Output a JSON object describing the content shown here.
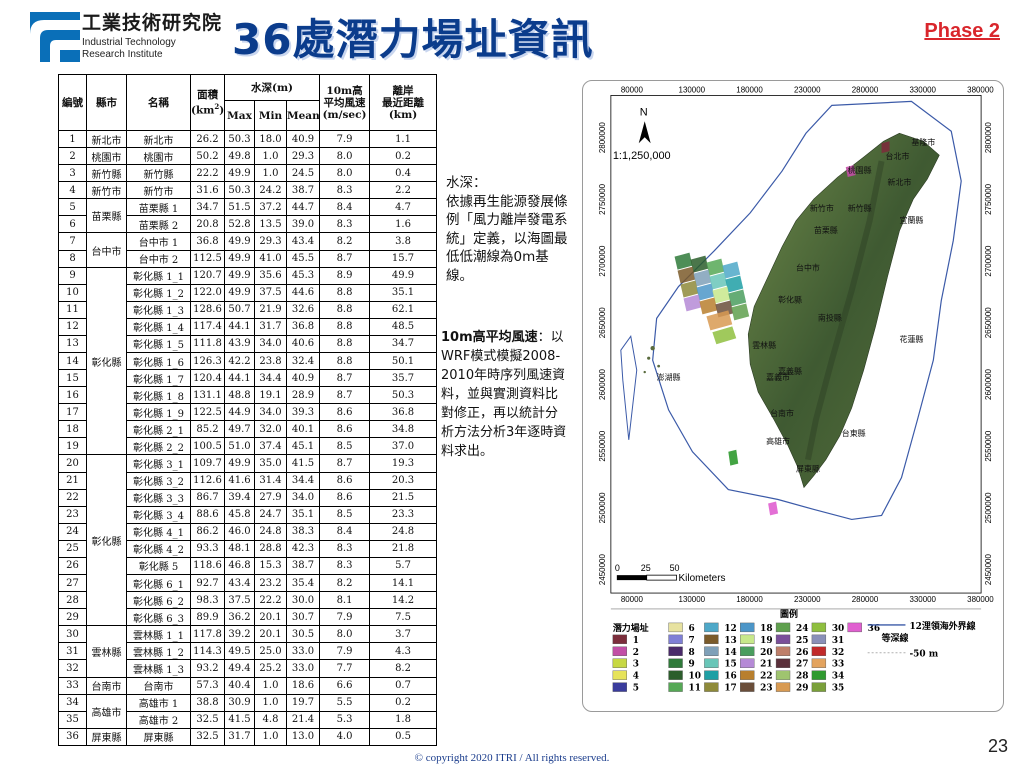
{
  "header": {
    "logo_zh": "工業技術研究院",
    "logo_en_1": "Industrial Technology",
    "logo_en_2": "Research Institute",
    "title": "36處潛力場址資訊",
    "phase": "Phase 2"
  },
  "table": {
    "h_id": "編號",
    "h_county": "縣市",
    "h_name": "名稱",
    "h_area_1": "面積",
    "h_area_2": "(km",
    "h_area_sup": "2",
    "h_area_3": ")",
    "h_depth": "水深(m)",
    "h_max": "Max",
    "h_min": "Min",
    "h_mean": "Mean",
    "h_wind_1": "10m高",
    "h_wind_2": "平均風速",
    "h_wind_3": "(m/sec)",
    "h_dist_1": "離岸",
    "h_dist_2": "最近距離",
    "h_dist_3": "(km)",
    "rows": [
      {
        "id": "1",
        "county": "新北市",
        "name": "新北市",
        "area": "26.2",
        "max": "50.3",
        "min": "18.0",
        "mean": "40.9",
        "wind": "7.9",
        "dist": "1.1"
      },
      {
        "id": "2",
        "county": "桃園市",
        "name": "桃園市",
        "area": "50.2",
        "max": "49.8",
        "min": "1.0",
        "mean": "29.3",
        "wind": "8.0",
        "dist": "0.2"
      },
      {
        "id": "3",
        "county": "新竹縣",
        "name": "新竹縣",
        "area": "22.2",
        "max": "49.9",
        "min": "1.0",
        "mean": "24.5",
        "wind": "8.0",
        "dist": "0.4"
      },
      {
        "id": "4",
        "county": "新竹市",
        "name": "新竹市",
        "area": "31.6",
        "max": "50.3",
        "min": "24.2",
        "mean": "38.7",
        "wind": "8.3",
        "dist": "2.2"
      },
      {
        "id": "5",
        "county": "苗栗縣",
        "name": "苗栗縣 1",
        "area": "34.7",
        "max": "51.5",
        "min": "37.2",
        "mean": "44.7",
        "wind": "8.4",
        "dist": "4.7"
      },
      {
        "id": "6",
        "county": "",
        "name": "苗栗縣 2",
        "area": "20.8",
        "max": "52.8",
        "min": "13.5",
        "mean": "39.0",
        "wind": "8.3",
        "dist": "1.6"
      },
      {
        "id": "7",
        "county": "台中市",
        "name": "台中市 1",
        "area": "36.8",
        "max": "49.9",
        "min": "29.3",
        "mean": "43.4",
        "wind": "8.2",
        "dist": "3.8"
      },
      {
        "id": "8",
        "county": "",
        "name": "台中市 2",
        "area": "112.5",
        "max": "49.9",
        "min": "41.0",
        "mean": "45.5",
        "wind": "8.7",
        "dist": "15.7"
      },
      {
        "id": "9",
        "county": "彰化縣",
        "name": "彰化縣 1_1",
        "area": "120.7",
        "max": "49.9",
        "min": "35.6",
        "mean": "45.3",
        "wind": "8.9",
        "dist": "49.9"
      },
      {
        "id": "10",
        "county": "",
        "name": "彰化縣 1_2",
        "area": "122.0",
        "max": "49.9",
        "min": "37.5",
        "mean": "44.6",
        "wind": "8.8",
        "dist": "35.1"
      },
      {
        "id": "11",
        "county": "",
        "name": "彰化縣 1_3",
        "area": "128.6",
        "max": "50.7",
        "min": "21.9",
        "mean": "32.6",
        "wind": "8.8",
        "dist": "62.1"
      },
      {
        "id": "12",
        "county": "",
        "name": "彰化縣 1_4",
        "area": "117.4",
        "max": "44.1",
        "min": "31.7",
        "mean": "36.8",
        "wind": "8.8",
        "dist": "48.5"
      },
      {
        "id": "13",
        "county": "",
        "name": "彰化縣 1_5",
        "area": "111.8",
        "max": "43.9",
        "min": "34.0",
        "mean": "40.6",
        "wind": "8.8",
        "dist": "34.7"
      },
      {
        "id": "14",
        "county": "",
        "name": "彰化縣 1_6",
        "area": "126.3",
        "max": "42.2",
        "min": "23.8",
        "mean": "32.4",
        "wind": "8.8",
        "dist": "50.1"
      },
      {
        "id": "15",
        "county": "",
        "name": "彰化縣 1_7",
        "area": "120.4",
        "max": "44.1",
        "min": "34.4",
        "mean": "40.9",
        "wind": "8.7",
        "dist": "35.7"
      },
      {
        "id": "16",
        "county": "",
        "name": "彰化縣 1_8",
        "area": "131.1",
        "max": "48.8",
        "min": "19.1",
        "mean": "28.9",
        "wind": "8.7",
        "dist": "50.3"
      },
      {
        "id": "17",
        "county": "",
        "name": "彰化縣 1_9",
        "area": "122.5",
        "max": "44.9",
        "min": "34.0",
        "mean": "39.3",
        "wind": "8.6",
        "dist": "36.8"
      },
      {
        "id": "18",
        "county": "",
        "name": "彰化縣 2_1",
        "area": "85.2",
        "max": "49.7",
        "min": "32.0",
        "mean": "40.1",
        "wind": "8.6",
        "dist": "34.8"
      },
      {
        "id": "19",
        "county": "",
        "name": "彰化縣 2_2",
        "area": "100.5",
        "max": "51.0",
        "min": "37.4",
        "mean": "45.1",
        "wind": "8.5",
        "dist": "37.0"
      },
      {
        "id": "20",
        "county": "彰化縣",
        "name": "彰化縣 3_1",
        "area": "109.7",
        "max": "49.9",
        "min": "35.0",
        "mean": "41.5",
        "wind": "8.7",
        "dist": "19.3"
      },
      {
        "id": "21",
        "county": "",
        "name": "彰化縣 3_2",
        "area": "112.6",
        "max": "41.6",
        "min": "31.4",
        "mean": "34.4",
        "wind": "8.6",
        "dist": "20.3"
      },
      {
        "id": "22",
        "county": "",
        "name": "彰化縣 3_3",
        "area": "86.7",
        "max": "39.4",
        "min": "27.9",
        "mean": "34.0",
        "wind": "8.6",
        "dist": "21.5"
      },
      {
        "id": "23",
        "county": "",
        "name": "彰化縣 3_4",
        "area": "88.6",
        "max": "45.8",
        "min": "24.7",
        "mean": "35.1",
        "wind": "8.5",
        "dist": "23.3"
      },
      {
        "id": "24",
        "county": "",
        "name": "彰化縣 4_1",
        "area": "86.2",
        "max": "46.0",
        "min": "24.8",
        "mean": "38.3",
        "wind": "8.4",
        "dist": "24.8"
      },
      {
        "id": "25",
        "county": "",
        "name": "彰化縣 4_2",
        "area": "93.3",
        "max": "48.1",
        "min": "28.8",
        "mean": "42.3",
        "wind": "8.3",
        "dist": "21.8"
      },
      {
        "id": "26",
        "county": "",
        "name": "彰化縣 5",
        "area": "118.6",
        "max": "46.8",
        "min": "15.3",
        "mean": "38.7",
        "wind": "8.3",
        "dist": "5.7"
      },
      {
        "id": "27",
        "county": "",
        "name": "彰化縣 6_1",
        "area": "92.7",
        "max": "43.4",
        "min": "23.2",
        "mean": "35.4",
        "wind": "8.2",
        "dist": "14.1"
      },
      {
        "id": "28",
        "county": "",
        "name": "彰化縣 6_2",
        "area": "98.3",
        "max": "37.5",
        "min": "22.2",
        "mean": "30.0",
        "wind": "8.1",
        "dist": "14.2"
      },
      {
        "id": "29",
        "county": "",
        "name": "彰化縣 6_3",
        "area": "89.9",
        "max": "36.2",
        "min": "20.1",
        "mean": "30.7",
        "wind": "7.9",
        "dist": "7.5"
      },
      {
        "id": "30",
        "county": "雲林縣",
        "name": "雲林縣 1_1",
        "area": "117.8",
        "max": "39.2",
        "min": "20.1",
        "mean": "30.5",
        "wind": "8.0",
        "dist": "3.7"
      },
      {
        "id": "31",
        "county": "",
        "name": "雲林縣 1_2",
        "area": "114.3",
        "max": "49.5",
        "min": "25.0",
        "mean": "33.0",
        "wind": "7.9",
        "dist": "4.3"
      },
      {
        "id": "32",
        "county": "",
        "name": "雲林縣 1_3",
        "area": "93.2",
        "max": "49.4",
        "min": "25.2",
        "mean": "33.0",
        "wind": "7.7",
        "dist": "8.2"
      },
      {
        "id": "33",
        "county": "台南市",
        "name": "台南市",
        "area": "57.3",
        "max": "40.4",
        "min": "1.0",
        "mean": "18.6",
        "wind": "6.6",
        "dist": "0.7"
      },
      {
        "id": "34",
        "county": "高雄市",
        "name": "高雄市 1",
        "area": "38.8",
        "max": "30.9",
        "min": "1.0",
        "mean": "19.7",
        "wind": "5.5",
        "dist": "0.2"
      },
      {
        "id": "35",
        "county": "",
        "name": "高雄市 2",
        "area": "32.5",
        "max": "41.5",
        "min": "4.8",
        "mean": "21.4",
        "wind": "5.3",
        "dist": "1.8"
      },
      {
        "id": "36",
        "county": "屏東縣",
        "name": "屏東縣",
        "area": "32.5",
        "max": "31.7",
        "min": "1.0",
        "mean": "13.0",
        "wind": "4.0",
        "dist": "0.5"
      }
    ]
  },
  "notes": {
    "depth_label": "水深：",
    "depth_text": "依據再生能源發展條例「風力離岸發電系統」定義，以海圖最低低潮線為0m基線。",
    "wind_label": "10m高平均風速",
    "wind_text": "：以WRF模式模擬2008-2010年時序列風速資料，並與實測資料比對修正，再以統計分析方法分析3年逐時資料求出。"
  },
  "map": {
    "north": "N",
    "scale": "1:1,250,000",
    "km_label": "Kilometers",
    "scale_ticks": [
      "0",
      "25",
      "50"
    ],
    "x_ticks": [
      "80000",
      "130000",
      "180000",
      "230000",
      "280000",
      "330000",
      "380000"
    ],
    "y_ticks": [
      "2800000",
      "2750000",
      "2700000",
      "2650000",
      "2600000",
      "2550000",
      "2500000",
      "2450000"
    ],
    "cities": [
      "台北市",
      "新北市",
      "基隆市",
      "桃園縣",
      "新竹縣",
      "新竹市",
      "苗栗縣",
      "宜蘭縣",
      "台中市",
      "彰化縣",
      "南投縣",
      "花蓮縣",
      "雲林縣",
      "嘉義縣",
      "嘉義市",
      "台南市",
      "高雄市",
      "屏東縣",
      "台東縣",
      "澎湖縣"
    ],
    "legend_title": "圖例",
    "legend_sites": "潛力場址",
    "legend_boundary": "12浬領海外界線",
    "legend_contour": "等深線",
    "legend_depth": "-50 m",
    "legend_items": [
      "1",
      "2",
      "3",
      "4",
      "5",
      "6",
      "7",
      "8",
      "9",
      "10",
      "11",
      "12",
      "13",
      "14",
      "15",
      "16",
      "17",
      "18",
      "19",
      "20",
      "21",
      "22",
      "23",
      "24",
      "25",
      "26",
      "27",
      "28",
      "29",
      "30",
      "31",
      "32",
      "33",
      "34",
      "35",
      "36"
    ],
    "legend_colors": [
      "#7b2d3b",
      "#c24fa6",
      "#c7d843",
      "#e6e35a",
      "#3a3c9c",
      "#e7e2a0",
      "#7f7fd6",
      "#4a2a6a",
      "#2f7a3a",
      "#2c5e2c",
      "#56a856",
      "#4ea8c8",
      "#7b5b2a",
      "#7fa0b8",
      "#69c6b8",
      "#1f9fa4",
      "#8e8a3a",
      "#4c96c8",
      "#c7e88b",
      "#4a9d5e",
      "#b58ad6",
      "#b87f2e",
      "#6a4e3a",
      "#5fa04e",
      "#7a4f9a",
      "#bf7f6a",
      "#5a2f3a",
      "#9fc46f",
      "#d89a52",
      "#8fbf3f",
      "#8a90b8",
      "#c12a2a",
      "#e3a35e",
      "#2f9a2f",
      "#7aa03a",
      "#e05fd0"
    ]
  },
  "footer": {
    "copyright": "© copyright 2020 ITRI / All rights reserved.",
    "page": "23"
  }
}
